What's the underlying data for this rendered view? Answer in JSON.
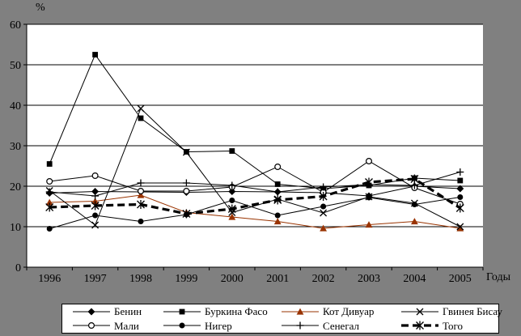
{
  "figure": {
    "background_color": "#808080",
    "plot_background_color": "#ffffff",
    "ylabel": "%",
    "xlabel": "Годы"
  },
  "chart_data": {
    "type": "line",
    "title": "",
    "xlabel": "Годы",
    "ylabel": "%",
    "x_labels": [
      "1996",
      "1997",
      "1998",
      "1999",
      "2000",
      "2001",
      "2002",
      "2003",
      "2004",
      "2005"
    ],
    "ylim": [
      0,
      60
    ],
    "ytick_step": 10,
    "ytick_labels": [
      "0",
      "10",
      "20",
      "30",
      "40",
      "50",
      "60"
    ],
    "grid": "horizontal",
    "legend_position": "bottom",
    "series": [
      {
        "name": "Бенин",
        "marker": "diamond-filled",
        "color": "#000000",
        "line": "solid",
        "values": [
          18.3,
          18.7,
          18.6,
          18.5,
          18.7,
          18.6,
          18.4,
          17.6,
          20.0,
          19.4
        ]
      },
      {
        "name": "Буркина Фасо",
        "marker": "square-filled",
        "color": "#000000",
        "line": "solid",
        "values": [
          25.5,
          52.5,
          36.8,
          28.5,
          28.7,
          20.5,
          19.4,
          20.2,
          22.0,
          21.4
        ]
      },
      {
        "name": "Кот Дивуар",
        "marker": "triangle-filled",
        "color": "#993300",
        "line": "solid",
        "values": [
          16.0,
          16.3,
          17.8,
          13.5,
          12.4,
          11.3,
          9.6,
          10.5,
          11.3,
          9.6
        ]
      },
      {
        "name": "Гвинея Бисау",
        "marker": "x",
        "color": "#000000",
        "line": "solid",
        "values": [
          18.9,
          10.4,
          39.2,
          28.4,
          13.5,
          16.8,
          13.4,
          17.4,
          15.8,
          10.0
        ]
      },
      {
        "name": "Мали",
        "marker": "circle-open",
        "color": "#000000",
        "line": "solid",
        "values": [
          21.2,
          22.6,
          18.8,
          18.8,
          19.8,
          24.8,
          18.5,
          26.2,
          19.6,
          15.6
        ]
      },
      {
        "name": "Нигер",
        "marker": "circle-filled",
        "color": "#000000",
        "line": "solid",
        "values": [
          9.5,
          12.8,
          11.3,
          13.0,
          16.5,
          12.8,
          15.0,
          17.2,
          15.5,
          17.3
        ]
      },
      {
        "name": "Сенегал",
        "marker": "plus",
        "color": "#000000",
        "line": "solid",
        "values": [
          18.6,
          17.6,
          20.8,
          20.8,
          20.2,
          18.6,
          19.8,
          20.4,
          20.2,
          23.5
        ]
      },
      {
        "name": "Того",
        "marker": "asterisk",
        "color": "#000000",
        "line": "dashed-thick",
        "values": [
          14.8,
          15.2,
          15.5,
          13.2,
          14.4,
          16.6,
          17.5,
          21.0,
          21.8,
          14.6
        ]
      }
    ],
    "legend_columns_series_indices": [
      [
        0,
        4
      ],
      [
        1,
        5
      ],
      [
        2,
        6
      ],
      [
        3,
        7
      ]
    ]
  }
}
